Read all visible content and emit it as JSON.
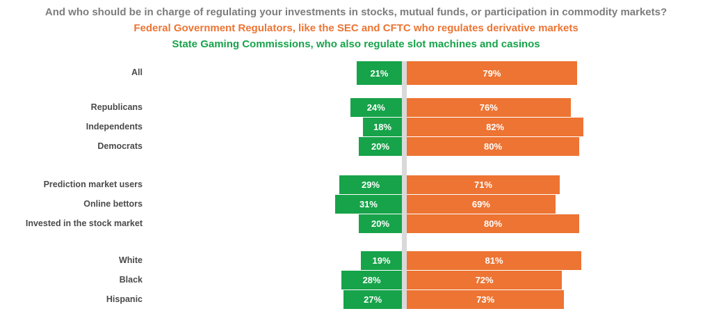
{
  "title": {
    "question": "And who should be in charge of regulating your investments in stocks, mutual funds, or participation in commodity markets?",
    "option_federal": "Federal Government Regulators, like the SEC and CFTC who regulates derivative markets",
    "option_state": "State Gaming Commissions, who also regulate slot machines and casinos"
  },
  "colors": {
    "green": "#17A34A",
    "orange": "#ED7433",
    "title_gray": "#7D7D7D",
    "label_gray": "#4A4A4A",
    "divider_gray": "#D9D9D9"
  },
  "chart_data": {
    "type": "bar",
    "variant": "horizontal-diverging-stacked",
    "title": "And who should be in charge of regulating your investments in stocks, mutual funds, or participation in commodity markets?",
    "legend": [
      {
        "label": "Federal Government Regulators, like the SEC and CFTC who regulates derivative markets",
        "color": "#ED7433",
        "position": "subtitle-line"
      },
      {
        "label": "State Gaming Commissions, who also regulate slot machines and casinos",
        "color": "#17A34A",
        "position": "subtitle-line"
      }
    ],
    "unit": "%",
    "xlim": [
      0,
      100
    ],
    "grid": false,
    "axis_labels": "none",
    "categories": [
      "All",
      "Republicans",
      "Independents",
      "Democrats",
      "Prediction market users",
      "Online bettors",
      "Invested in the stock market",
      "White",
      "Black",
      "Hispanic"
    ],
    "groups": [
      [
        "All"
      ],
      [
        "Republicans",
        "Independents",
        "Democrats"
      ],
      [
        "Prediction market users",
        "Online bettors",
        "Invested in the stock market"
      ],
      [
        "White",
        "Black",
        "Hispanic"
      ]
    ],
    "series": [
      {
        "name": "State Gaming Commissions",
        "color": "#17A34A",
        "side": "left",
        "values": [
          21,
          24,
          18,
          20,
          29,
          31,
          20,
          19,
          28,
          27
        ]
      },
      {
        "name": "Federal Government Regulators",
        "color": "#ED7433",
        "side": "right",
        "values": [
          79,
          76,
          82,
          80,
          71,
          69,
          80,
          81,
          72,
          73
        ]
      }
    ],
    "rows": [
      {
        "label": "All",
        "green": "21%",
        "orange": "79%"
      },
      {
        "label": "Republicans",
        "green": "24%",
        "orange": "76%"
      },
      {
        "label": "Independents",
        "green": "18%",
        "orange": "82%"
      },
      {
        "label": "Democrats",
        "green": "20%",
        "orange": "80%"
      },
      {
        "label": "Prediction market users",
        "green": "29%",
        "orange": "71%"
      },
      {
        "label": "Online bettors",
        "green": "31%",
        "orange": "69%"
      },
      {
        "label": "Invested in the stock market",
        "green": "20%",
        "orange": "80%"
      },
      {
        "label": "White",
        "green": "19%",
        "orange": "81%"
      },
      {
        "label": "Black",
        "green": "28%",
        "orange": "72%"
      },
      {
        "label": "Hispanic",
        "green": "27%",
        "orange": "73%"
      }
    ]
  }
}
